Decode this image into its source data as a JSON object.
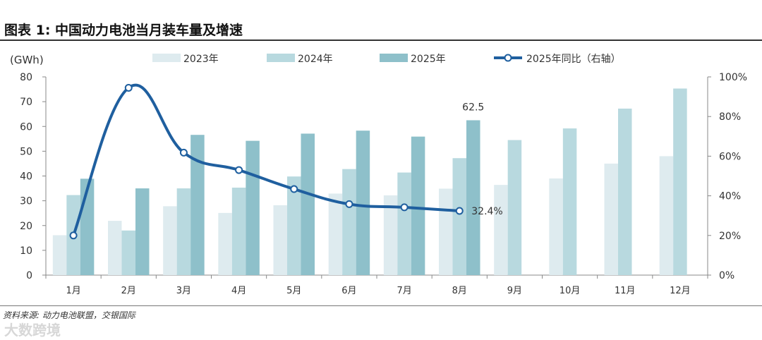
{
  "title": "图表 1: 中国动力电池当月装车量及增速",
  "source": "资料来源: 动力电池联盟，交银国际",
  "watermark": "大数跨境",
  "chart_data": {
    "type": "bar",
    "title": "图表 1: 中国动力电池当月装车量及增速",
    "ylabel": "(GWh)",
    "ylim": [
      0,
      80
    ],
    "yticks": [
      "0",
      "10",
      "20",
      "30",
      "40",
      "50",
      "60",
      "70",
      "80"
    ],
    "y2lim": [
      0,
      100
    ],
    "y2ticks": [
      "0%",
      "20%",
      "40%",
      "60%",
      "80%",
      "100%"
    ],
    "categories": [
      "1月",
      "2月",
      "3月",
      "4月",
      "5月",
      "6月",
      "7月",
      "8月",
      "9月",
      "10月",
      "11月",
      "12月"
    ],
    "series": [
      {
        "name": "2023年",
        "type": "bar",
        "color": "#deebef",
        "values": [
          16.1,
          21.9,
          27.8,
          25.1,
          28.2,
          32.9,
          32.2,
          34.9,
          36.4,
          39.0,
          45.0,
          48.0
        ]
      },
      {
        "name": "2024年",
        "type": "bar",
        "color": "#b8d9df",
        "values": [
          32.3,
          18.0,
          35.0,
          35.3,
          39.8,
          42.8,
          41.4,
          47.2,
          54.5,
          59.2,
          67.2,
          75.3
        ]
      },
      {
        "name": "2025年",
        "type": "bar",
        "color": "#8ec0ca",
        "values": [
          38.9,
          35.0,
          56.6,
          54.2,
          57.1,
          58.3,
          55.9,
          62.5,
          null,
          null,
          null,
          null
        ]
      },
      {
        "name": "2025年同比（右轴）",
        "type": "line",
        "axis": "right",
        "color": "#1f5f9f",
        "values": [
          20.0,
          94.5,
          61.8,
          53.0,
          43.4,
          35.8,
          34.2,
          32.4,
          null,
          null,
          null,
          null
        ]
      }
    ],
    "annotations": [
      {
        "text": "62.5",
        "category": "8月",
        "series": "2025年"
      },
      {
        "text": "32.4%",
        "category": "8月",
        "series": "2025年同比（右轴）"
      }
    ]
  }
}
